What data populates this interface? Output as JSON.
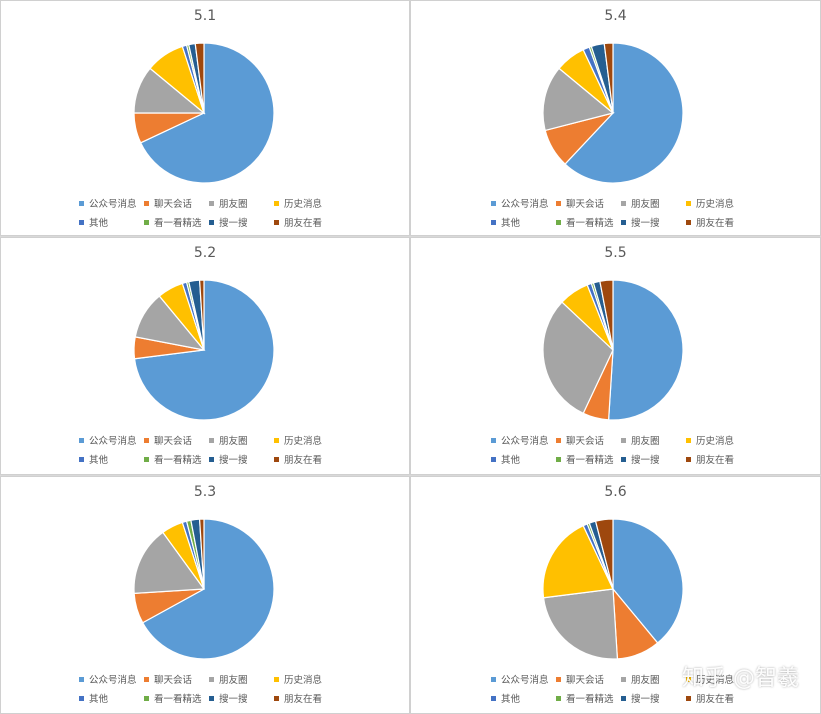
{
  "legend_labels": [
    "公众号消息",
    "聊天会话",
    "朋友圈",
    "历史消息",
    "其他",
    "看一看精选",
    "搜一搜",
    "朋友在看"
  ],
  "colors": [
    "#5b9bd5",
    "#ed7d31",
    "#a5a5a5",
    "#ffc000",
    "#4472c4",
    "#70ad47",
    "#255e91",
    "#9e480e"
  ],
  "watermark": "知乎 @智羲",
  "chart_data": [
    {
      "type": "pie",
      "title": "5.1",
      "categories": [
        "公众号消息",
        "聊天会话",
        "朋友圈",
        "历史消息",
        "其他",
        "看一看精选",
        "搜一搜",
        "朋友在看"
      ],
      "values": [
        68,
        7,
        11,
        9,
        1,
        0.5,
        1.5,
        2
      ]
    },
    {
      "type": "pie",
      "title": "5.4",
      "categories": [
        "公众号消息",
        "聊天会话",
        "朋友圈",
        "历史消息",
        "其他",
        "看一看精选",
        "搜一搜",
        "朋友在看"
      ],
      "values": [
        62,
        9,
        15,
        7,
        1.5,
        0.5,
        3,
        2
      ]
    },
    {
      "type": "pie",
      "title": "5.2",
      "categories": [
        "公众号消息",
        "聊天会话",
        "朋友圈",
        "历史消息",
        "其他",
        "看一看精选",
        "搜一搜",
        "朋友在看"
      ],
      "values": [
        73,
        5,
        11,
        6,
        1,
        0.5,
        2.5,
        1
      ]
    },
    {
      "type": "pie",
      "title": "5.5",
      "categories": [
        "公众号消息",
        "聊天会话",
        "朋友圈",
        "历史消息",
        "其他",
        "看一看精选",
        "搜一搜",
        "朋友在看"
      ],
      "values": [
        51,
        6,
        30,
        7,
        1,
        0.5,
        1.5,
        3
      ]
    },
    {
      "type": "pie",
      "title": "5.3",
      "categories": [
        "公众号消息",
        "聊天会话",
        "朋友圈",
        "历史消息",
        "其他",
        "看一看精选",
        "搜一搜",
        "朋友在看"
      ],
      "values": [
        67,
        7,
        16,
        5,
        1,
        1,
        2,
        1
      ]
    },
    {
      "type": "pie",
      "title": "5.6",
      "categories": [
        "公众号消息",
        "聊天会话",
        "朋友圈",
        "历史消息",
        "其他",
        "看一看精选",
        "搜一搜",
        "朋友在看"
      ],
      "values": [
        39,
        10,
        24,
        20,
        1,
        0.5,
        1.5,
        4
      ]
    }
  ]
}
